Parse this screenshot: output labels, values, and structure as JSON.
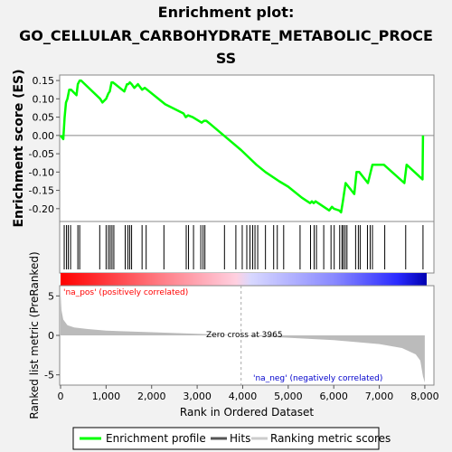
{
  "chart_data": {
    "type": "line",
    "title_lines": [
      "Enrichment plot:",
      "GO_CELLULAR_CARBOHYDRATE_METABOLIC_PROCE",
      "SS"
    ],
    "es_panel": {
      "ylabel": "Enrichment score (ES)",
      "ylim": [
        -0.235,
        0.165
      ],
      "yticks": [
        0.15,
        0.1,
        0.05,
        0.0,
        -0.05,
        -0.1,
        -0.15,
        -0.2
      ],
      "ytick_labels": [
        "0.15",
        "0.10",
        "0.05",
        "0.00",
        "-0.05",
        "-0.10",
        "-0.15",
        "-0.20"
      ]
    },
    "xlim": [
      0,
      8200
    ],
    "xticks": [
      0,
      1000,
      2000,
      3000,
      4000,
      5000,
      6000,
      7000,
      8000
    ],
    "xtick_labels": [
      "0",
      "1,000",
      "2,000",
      "3,000",
      "4,000",
      "5,000",
      "6,000",
      "7,000",
      "8,000"
    ],
    "xlabel": "Rank in Ordered Dataset",
    "enrichment_profile": {
      "name": "Enrichment profile",
      "color": "#00ff00",
      "x": [
        0,
        60,
        90,
        120,
        150,
        190,
        230,
        350,
        380,
        420,
        450,
        870,
        920,
        1000,
        1050,
        1080,
        1120,
        1150,
        1400,
        1460,
        1490,
        1520,
        1560,
        1620,
        1700,
        1790,
        1850,
        1900,
        2250,
        2300,
        2700,
        2750,
        2800,
        2900,
        3100,
        3150,
        3200,
        3300,
        3965,
        4300,
        4500,
        4800,
        5000,
        5300,
        5480,
        5520,
        5560,
        5600,
        5900,
        5960,
        6000,
        6120,
        6160,
        6200,
        6260,
        6450,
        6500,
        6560,
        6750,
        6850,
        7100,
        7550,
        7600,
        7950,
        7960
      ],
      "y": [
        0.0,
        -0.01,
        0.05,
        0.09,
        0.1,
        0.125,
        0.125,
        0.11,
        0.14,
        0.15,
        0.15,
        0.1,
        0.09,
        0.1,
        0.115,
        0.12,
        0.145,
        0.145,
        0.12,
        0.14,
        0.14,
        0.145,
        0.14,
        0.13,
        0.14,
        0.125,
        0.13,
        0.125,
        0.09,
        0.085,
        0.06,
        0.05,
        0.055,
        0.05,
        0.035,
        0.04,
        0.04,
        0.03,
        -0.04,
        -0.08,
        -0.1,
        -0.125,
        -0.14,
        -0.17,
        -0.185,
        -0.18,
        -0.185,
        -0.18,
        -0.205,
        -0.195,
        -0.2,
        -0.205,
        -0.21,
        -0.18,
        -0.13,
        -0.16,
        -0.1,
        -0.1,
        -0.13,
        -0.08,
        -0.08,
        -0.13,
        -0.08,
        -0.12,
        0.0
      ]
    },
    "hits": {
      "name": "Hits",
      "positions": [
        80,
        130,
        170,
        220,
        380,
        420,
        860,
        1000,
        1050,
        1090,
        1130,
        1170,
        1420,
        1480,
        1520,
        1560,
        1790,
        1880,
        2270,
        2760,
        2810,
        2920,
        3080,
        3130,
        3170,
        3600,
        3850,
        3990,
        4090,
        4160,
        4220,
        4270,
        4330,
        4500,
        4680,
        4760,
        4900,
        5260,
        5490,
        5570,
        5620,
        5780,
        5940,
        6010,
        6130,
        6180,
        6210,
        6250,
        6290,
        6480,
        6540,
        6580,
        6740,
        6800,
        6850,
        7120,
        7580,
        7960
      ]
    },
    "ranked_metric": {
      "name": "Ranking metric scores",
      "ylabel": "Ranked list metric (PreRanked)",
      "ylim": [
        -6.3,
        6.3
      ],
      "yticks": [
        5,
        0,
        -5
      ],
      "ytick_labels": [
        "5",
        "0",
        "-5"
      ],
      "x": [
        0,
        20,
        60,
        150,
        300,
        600,
        1000,
        2000,
        3000,
        3965,
        5000,
        6000,
        7000,
        7500,
        7800,
        7900,
        7960,
        8000
      ],
      "y": [
        5.3,
        3.2,
        2.0,
        1.3,
        1.0,
        0.8,
        0.6,
        0.4,
        0.2,
        0.0,
        -0.3,
        -0.6,
        -1.1,
        -1.6,
        -2.4,
        -3.2,
        -5.2,
        -6.0
      ]
    },
    "annotations": {
      "pos_label": "'na_pos' (positively correlated)",
      "neg_label": "'na_neg' (negatively correlated)",
      "zero_cross": "Zero cross at 3965",
      "zero_cross_rank": 3965
    },
    "legend": {
      "placement": "bottom",
      "items": [
        {
          "label": "Enrichment profile",
          "color": "#00ff00"
        },
        {
          "label": "Hits",
          "color": "#555555"
        },
        {
          "label": "Ranking metric scores",
          "color": "#cccccc"
        }
      ]
    }
  }
}
